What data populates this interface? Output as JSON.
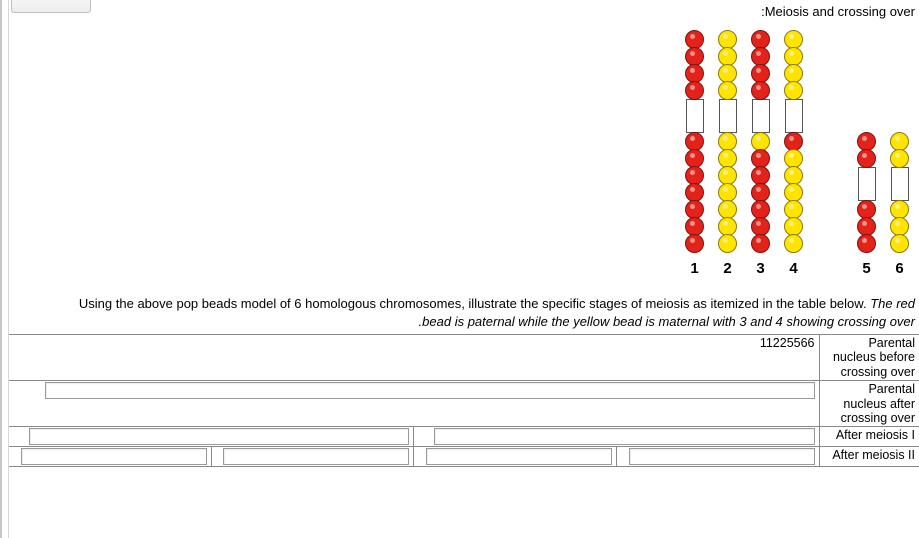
{
  "title": ":Meiosis and crossing over",
  "description_plain": "Using the above pop beads model of 6 homologous chromosomes, illustrate the specific stages of meiosis as itemized in the table below. ",
  "description_italic_1": "The red",
  "description_italic_2": ".bead is paternal while the yellow bead is maternal with 3 and 4 showing crossing over",
  "colors": {
    "red": "#e32219",
    "red_border": "#7a1410",
    "yellow": "#ffe400",
    "yellow_border": "#8a7a00",
    "centromere_border": "#555555",
    "table_border": "#888888"
  },
  "chromosomes": [
    {
      "label": "1",
      "upper": [
        "red",
        "red",
        "red",
        "red"
      ],
      "lower": [
        "red",
        "red",
        "red",
        "red",
        "red",
        "red",
        "red"
      ]
    },
    {
      "label": "2",
      "upper": [
        "yellow",
        "yellow",
        "yellow",
        "yellow"
      ],
      "lower": [
        "yellow",
        "yellow",
        "yellow",
        "yellow",
        "yellow",
        "yellow",
        "yellow"
      ]
    },
    {
      "label": "3",
      "upper": [
        "red",
        "red",
        "red",
        "red"
      ],
      "lower": [
        "yellow",
        "red",
        "red",
        "red",
        "red",
        "red",
        "red"
      ]
    },
    {
      "label": "4",
      "upper": [
        "yellow",
        "yellow",
        "yellow",
        "yellow"
      ],
      "lower": [
        "red",
        "yellow",
        "yellow",
        "yellow",
        "yellow",
        "yellow",
        "yellow"
      ]
    },
    {
      "label": "5",
      "upper": [
        "red",
        "red"
      ],
      "lower": [
        "red",
        "red",
        "red"
      ]
    },
    {
      "label": "6",
      "upper": [
        "yellow",
        "yellow"
      ],
      "lower": [
        "yellow",
        "yellow",
        "yellow"
      ]
    }
  ],
  "table": {
    "rows": [
      {
        "label": "Parental nucleus before crossing over",
        "cells": 1,
        "prefill": "11225566"
      },
      {
        "label": "Parental nucleus after crossing over",
        "cells": 1,
        "prefill": ""
      },
      {
        "label": "After meiosis I",
        "cells": 2,
        "prefill": ""
      },
      {
        "label": "After meiosis II",
        "cells": 4,
        "prefill": ""
      }
    ]
  }
}
